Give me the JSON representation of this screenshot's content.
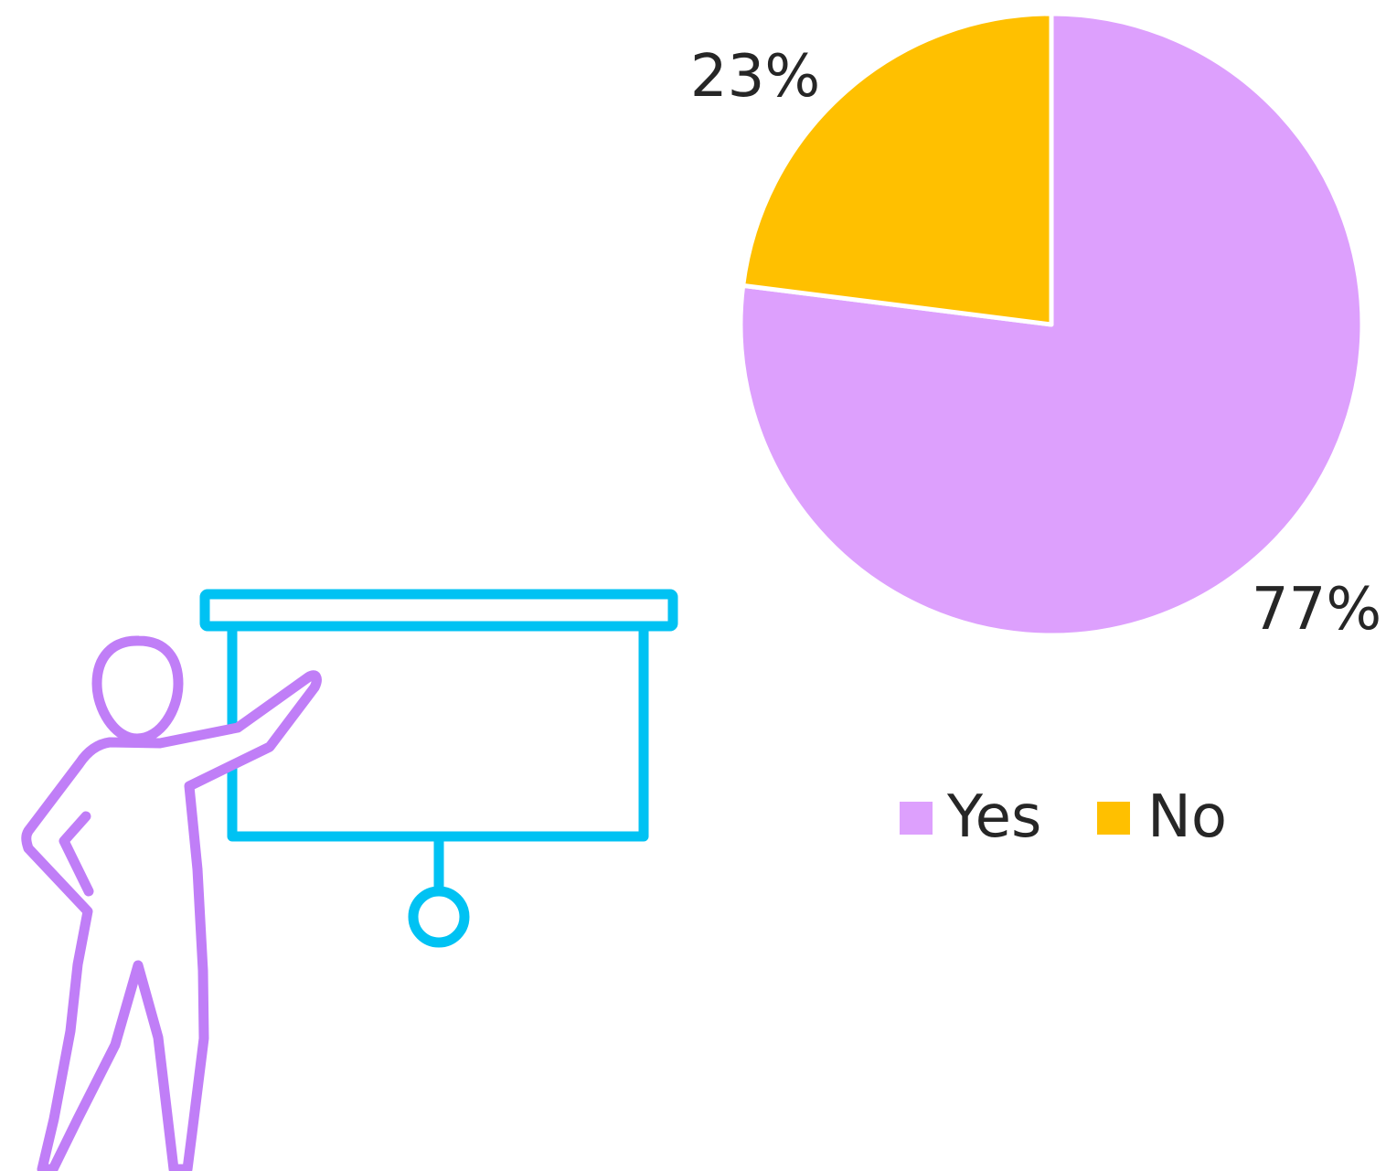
{
  "chart_data": {
    "type": "pie",
    "categories": [
      "Yes",
      "No"
    ],
    "values": [
      77,
      23
    ],
    "data_labels": [
      "77%",
      "23%"
    ],
    "colors": [
      "#DDA0FD",
      "#FFC000"
    ],
    "start_angle_deg": 0,
    "direction": "clockwise",
    "legend": {
      "placement": "bottom",
      "entries": [
        "Yes",
        "No"
      ]
    }
  },
  "illustration": {
    "icon": "presenter-pointing-at-screen-icon",
    "presenter_color": "#C07EF7",
    "screen_color": "#00C2F3"
  }
}
